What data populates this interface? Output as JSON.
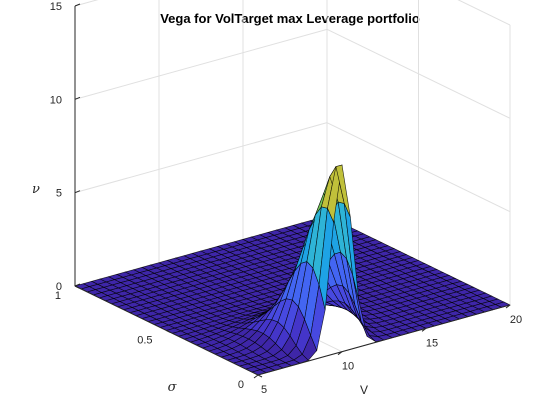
{
  "chart_data": {
    "type": "surface",
    "title": "Vega for VolTarget max Leverage portfolio",
    "xlabel": "V",
    "ylabel": "σ",
    "zlabel": "ν",
    "xlim": [
      5,
      20
    ],
    "ylim": [
      0,
      1
    ],
    "zlim": [
      0,
      15
    ],
    "x_ticks": [
      "5",
      "10",
      "15",
      "20"
    ],
    "y_ticks": [
      "0",
      "0.5",
      "1"
    ],
    "z_ticks": [
      "0",
      "5",
      "10",
      "15"
    ],
    "grid": true,
    "colormap": "parula",
    "surface_peak": {
      "x": 10,
      "y": 0,
      "z": 10.0
    },
    "surface_description_values": {
      "peak_v": 10,
      "peak_sigma": 0,
      "peak_vega": 10.0,
      "spread_v_at_sigma_0": 0.6,
      "spread_sigma": 0.15
    }
  },
  "colors": {
    "dark_blue": "#3e26a8",
    "blue": "#4365f2",
    "cyan": "#2eb4d7",
    "green": "#74c657",
    "yellow": "#f9d22f"
  }
}
